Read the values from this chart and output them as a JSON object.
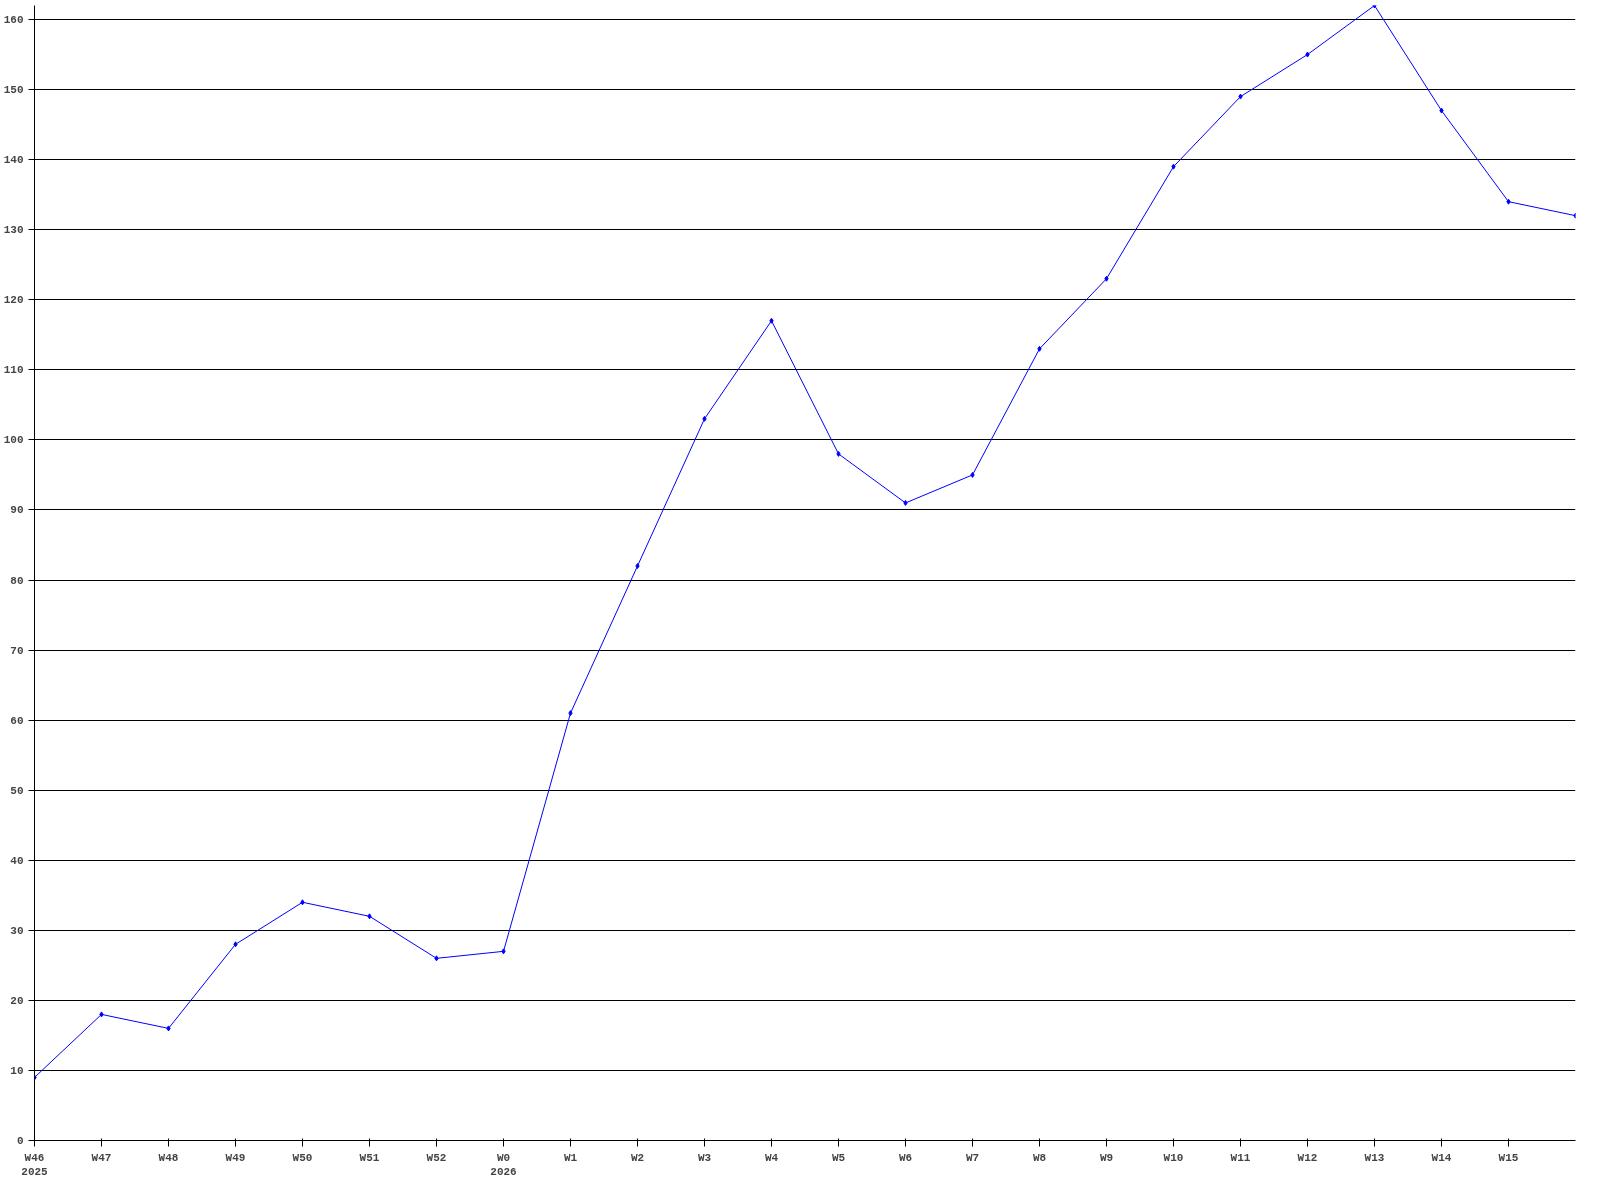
{
  "chart_data": {
    "type": "line",
    "categories": [
      "W46\n2025",
      "W47",
      "W48",
      "W49",
      "W50",
      "W51",
      "W52",
      "W0\n2026",
      "W1",
      "W2",
      "W3",
      "W4",
      "W5",
      "W6",
      "W7",
      "W8",
      "W9",
      "W10",
      "W11",
      "W12",
      "W13",
      "W14",
      "W15",
      null
    ],
    "series": [
      {
        "color": "#0000ff",
        "values": [
          9,
          18,
          16,
          28,
          34,
          32,
          26,
          27,
          61,
          82,
          103,
          117,
          98,
          91,
          95,
          113,
          123,
          139,
          149,
          155,
          162,
          147,
          134,
          132
        ]
      }
    ],
    "ylim": [
      0,
      162
    ],
    "yticks": [
      0,
      10,
      20,
      30,
      40,
      50,
      60,
      70,
      80,
      90,
      100,
      110,
      120,
      130,
      140,
      150,
      160
    ],
    "grid": "y",
    "marker": "diamond",
    "line_style": "solid"
  }
}
